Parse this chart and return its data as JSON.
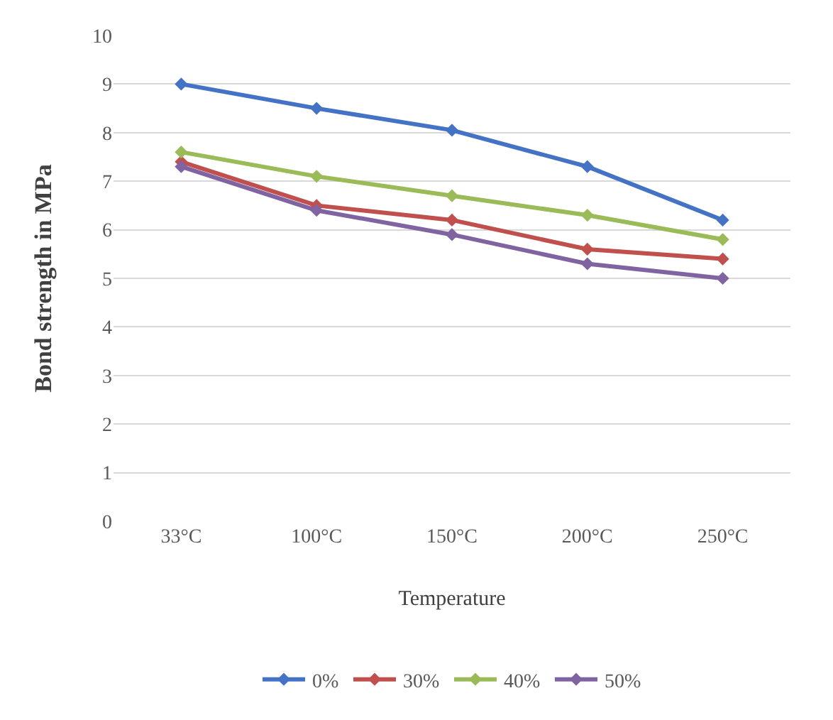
{
  "chart_data": {
    "type": "line",
    "xlabel": "Temperature",
    "ylabel": "Bond strength in MPa",
    "categories": [
      "33°C",
      "100°C",
      "150°C",
      "200°C",
      "250°C"
    ],
    "series": [
      {
        "name": "0%",
        "color": "#4472c4",
        "values": [
          9.0,
          8.5,
          8.05,
          7.3,
          6.2
        ]
      },
      {
        "name": "30%",
        "color": "#c0504d",
        "values": [
          7.4,
          6.5,
          6.2,
          5.6,
          5.4
        ]
      },
      {
        "name": "40%",
        "color": "#9bbb59",
        "values": [
          7.6,
          7.1,
          6.7,
          6.3,
          5.8
        ]
      },
      {
        "name": "50%",
        "color": "#8064a2",
        "values": [
          7.3,
          6.4,
          5.9,
          5.3,
          5.0
        ]
      }
    ],
    "ylim": [
      0,
      10
    ],
    "yticks": [
      0,
      1,
      2,
      3,
      4,
      5,
      6,
      7,
      8,
      9,
      10
    ],
    "grid": "y",
    "legend": "bottom",
    "marker": "diamond",
    "line_style": "solid"
  }
}
